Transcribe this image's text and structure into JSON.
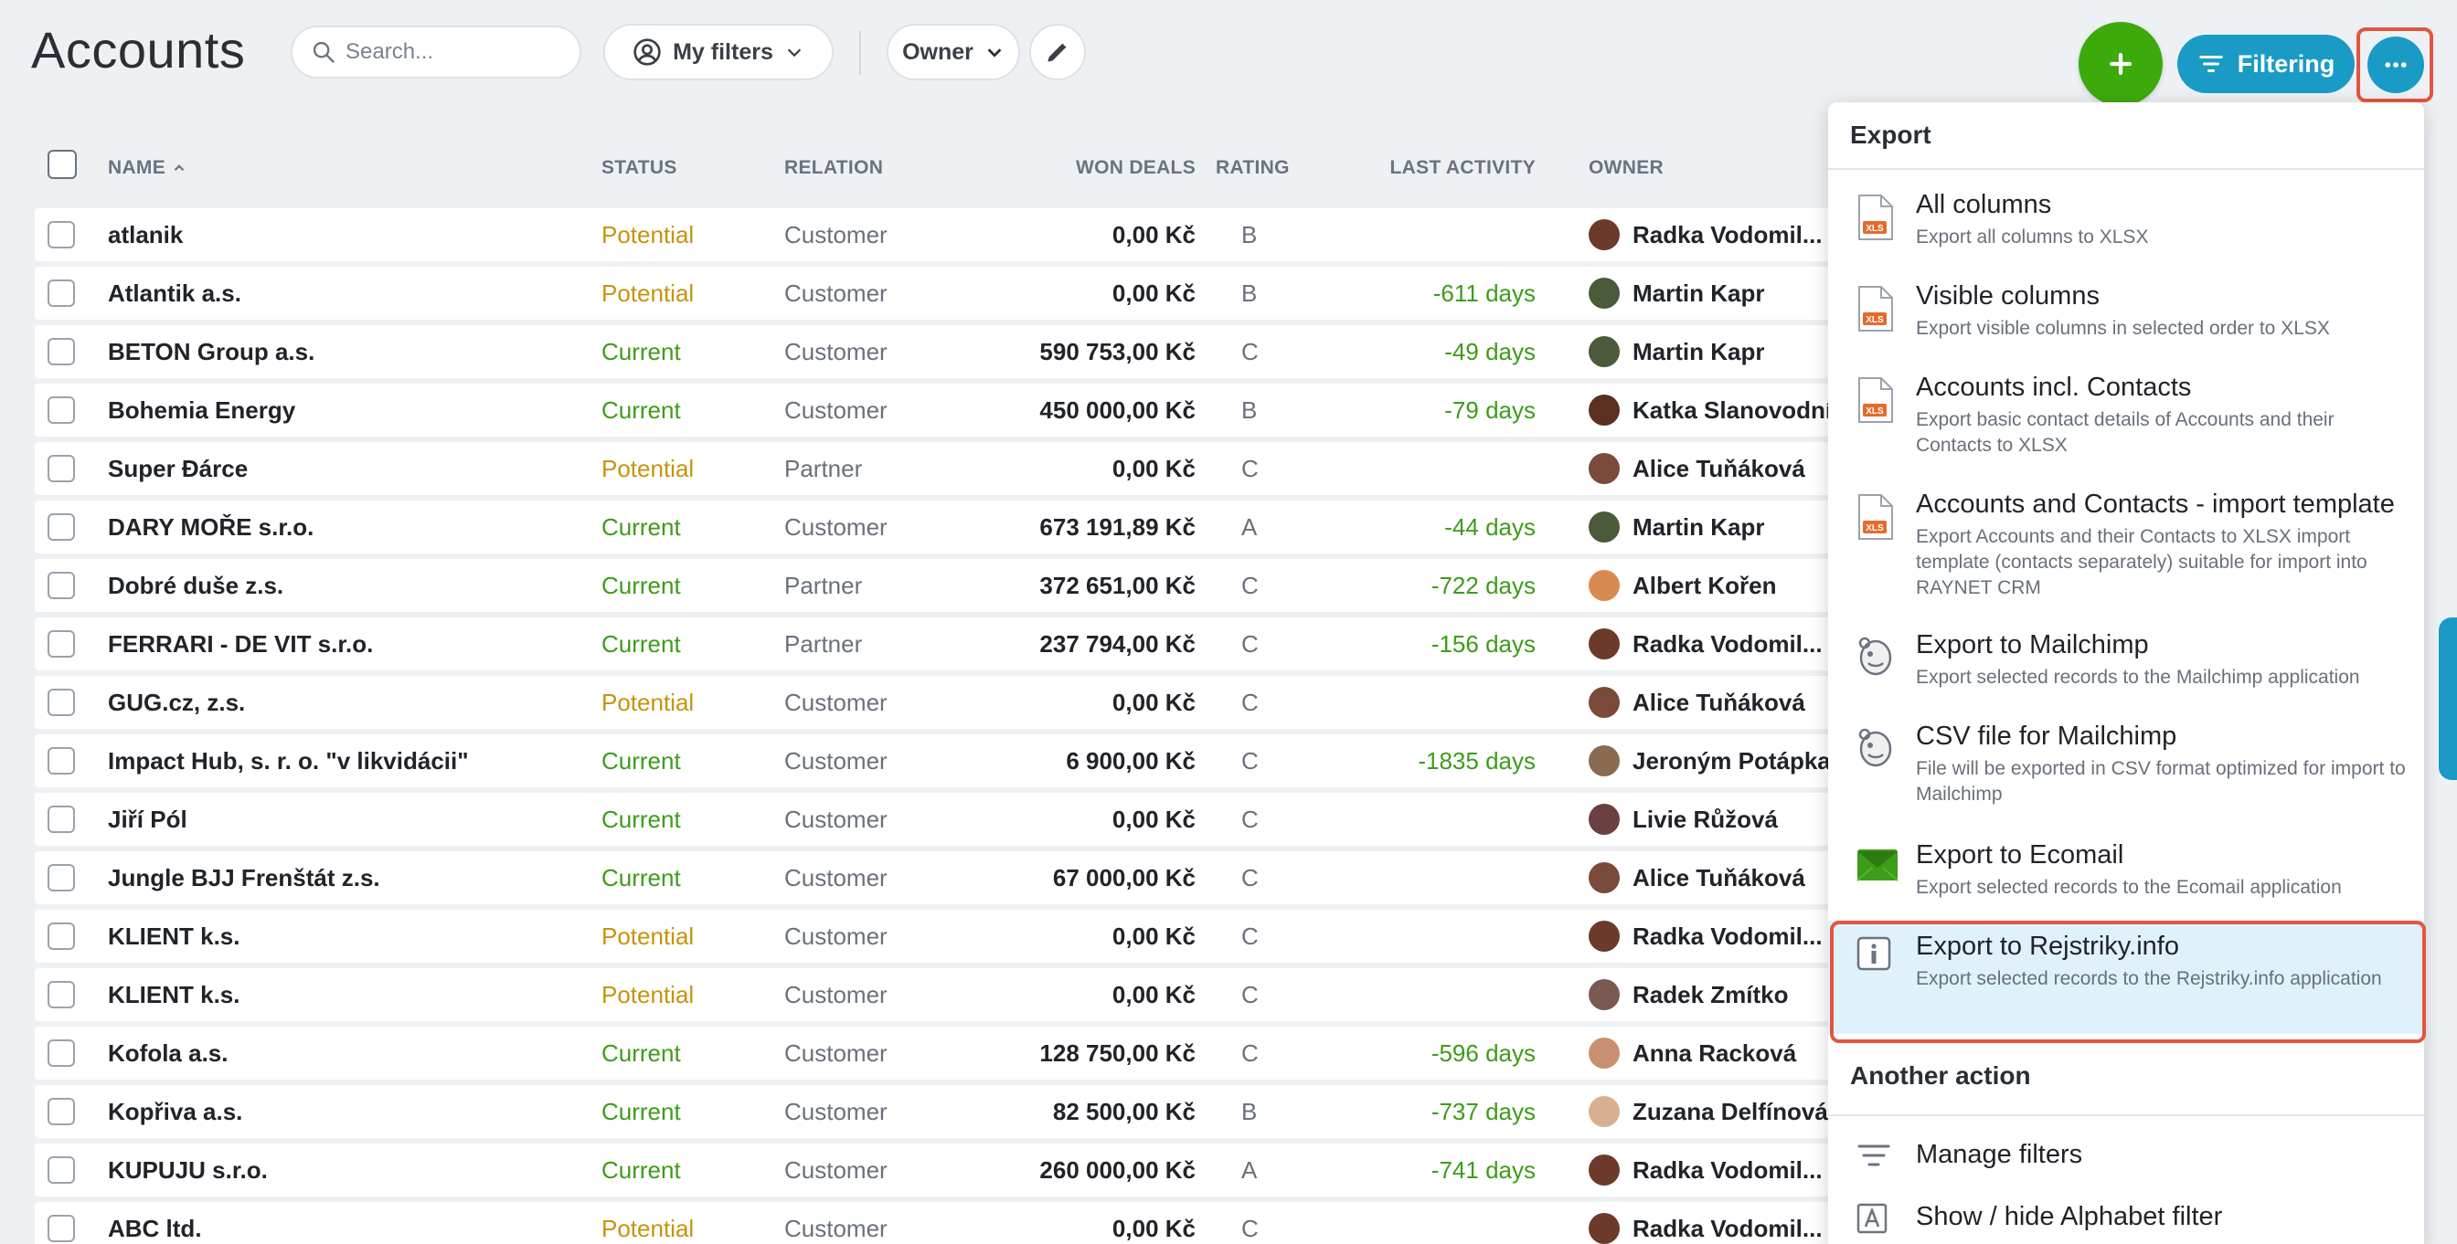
{
  "header": {
    "title": "Accounts",
    "search_placeholder": "Search...",
    "my_filters_label": "My filters",
    "owner_label": "Owner",
    "filtering_label": "Filtering"
  },
  "columns": {
    "name": "NAME",
    "status": "STATUS",
    "relation": "RELATION",
    "won_deals": "WON DEALS",
    "rating": "RATING",
    "last_activity": "LAST ACTIVITY",
    "owner": "OWNER"
  },
  "colors": {
    "primary": "#1a9bc6",
    "add": "#3daa0c",
    "potential": "#c8930b",
    "current": "#3d9c19",
    "highlight_border": "#e4553f",
    "selected_bg": "#dff1fb"
  },
  "rows": [
    {
      "name": "atlanik",
      "status": "Potential",
      "relation": "Customer",
      "won_deals": "0,00 Kč",
      "rating": "B",
      "last_activity": "",
      "owner": "Radka Vodomil...",
      "avatar_color": "#6b3a2a"
    },
    {
      "name": "Atlantik a.s.",
      "status": "Potential",
      "relation": "Customer",
      "won_deals": "0,00 Kč",
      "rating": "B",
      "last_activity": "-611 days",
      "owner": "Martin Kapr",
      "avatar_color": "#4a5a3a"
    },
    {
      "name": "BETON Group a.s.",
      "status": "Current",
      "relation": "Customer",
      "won_deals": "590 753,00 Kč",
      "rating": "C",
      "last_activity": "-49 days",
      "owner": "Martin Kapr",
      "avatar_color": "#4a5a3a"
    },
    {
      "name": "Bohemia Energy",
      "status": "Current",
      "relation": "Customer",
      "won_deals": "450 000,00 Kč",
      "rating": "B",
      "last_activity": "-79 days",
      "owner": "Katka Slanovodní",
      "avatar_color": "#5a3020"
    },
    {
      "name": "Super Ðárce",
      "status": "Potential",
      "relation": "Partner",
      "won_deals": "0,00 Kč",
      "rating": "C",
      "last_activity": "",
      "owner": "Alice Tuňáková",
      "avatar_color": "#7a4a3a"
    },
    {
      "name": "DARY MOŘE s.r.o.",
      "status": "Current",
      "relation": "Customer",
      "won_deals": "673 191,89 Kč",
      "rating": "A",
      "last_activity": "-44 days",
      "owner": "Martin Kapr",
      "avatar_color": "#4a5a3a"
    },
    {
      "name": "Dobré duše z.s.",
      "status": "Current",
      "relation": "Partner",
      "won_deals": "372 651,00 Kč",
      "rating": "C",
      "last_activity": "-722 days",
      "owner": "Albert Kořen",
      "avatar_color": "#d98a50"
    },
    {
      "name": "FERRARI - DE VIT s.r.o.",
      "status": "Current",
      "relation": "Partner",
      "won_deals": "237 794,00 Kč",
      "rating": "C",
      "last_activity": "-156 days",
      "owner": "Radka Vodomil...",
      "avatar_color": "#6b3a2a"
    },
    {
      "name": "GUG.cz, z.s.",
      "status": "Potential",
      "relation": "Customer",
      "won_deals": "0,00 Kč",
      "rating": "C",
      "last_activity": "",
      "owner": "Alice Tuňáková",
      "avatar_color": "#7a4a3a"
    },
    {
      "name": "Impact Hub, s. r. o. \"v likvidácii\"",
      "status": "Current",
      "relation": "Customer",
      "won_deals": "6 900,00 Kč",
      "rating": "C",
      "last_activity": "-1835 days",
      "owner": "Jeroným Potápka",
      "avatar_color": "#8a6a50"
    },
    {
      "name": "Jiří Pól",
      "status": "Current",
      "relation": "Customer",
      "won_deals": "0,00 Kč",
      "rating": "C",
      "last_activity": "",
      "owner": "Livie Růžová",
      "avatar_color": "#6a4040"
    },
    {
      "name": "Jungle BJJ Frenštát z.s.",
      "status": "Current",
      "relation": "Customer",
      "won_deals": "67 000,00 Kč",
      "rating": "C",
      "last_activity": "",
      "owner": "Alice Tuňáková",
      "avatar_color": "#7a4a3a"
    },
    {
      "name": "KLIENT k.s.",
      "status": "Potential",
      "relation": "Customer",
      "won_deals": "0,00 Kč",
      "rating": "C",
      "last_activity": "",
      "owner": "Radka Vodomil...",
      "avatar_color": "#6b3a2a"
    },
    {
      "name": "KLIENT k.s.",
      "status": "Potential",
      "relation": "Customer",
      "won_deals": "0,00 Kč",
      "rating": "C",
      "last_activity": "",
      "owner": "Radek Zmítko",
      "avatar_color": "#7a5a50"
    },
    {
      "name": "Kofola a.s.",
      "status": "Current",
      "relation": "Customer",
      "won_deals": "128 750,00 Kč",
      "rating": "C",
      "last_activity": "-596 days",
      "owner": "Anna Racková",
      "avatar_color": "#c89070"
    },
    {
      "name": "Kopřiva a.s.",
      "status": "Current",
      "relation": "Customer",
      "won_deals": "82 500,00 Kč",
      "rating": "B",
      "last_activity": "-737 days",
      "owner": "Zuzana Delfínová",
      "avatar_color": "#d8b090"
    },
    {
      "name": "KUPUJU s.r.o.",
      "status": "Current",
      "relation": "Customer",
      "won_deals": "260 000,00 Kč",
      "rating": "A",
      "last_activity": "-741 days",
      "owner": "Radka Vodomil...",
      "avatar_color": "#6b3a2a"
    },
    {
      "name": "ABC ltd.",
      "status": "Potential",
      "relation": "Customer",
      "won_deals": "0,00 Kč",
      "rating": "C",
      "last_activity": "",
      "owner": "Radka Vodomil...",
      "avatar_color": "#6b3a2a"
    }
  ],
  "menu": {
    "export_title": "Export",
    "items": [
      {
        "title": "All columns",
        "desc": "Export all columns to XLSX",
        "icon": "xls-icon"
      },
      {
        "title": "Visible columns",
        "desc": "Export visible columns in selected order to XLSX",
        "icon": "xls-icon"
      },
      {
        "title": "Accounts incl. Contacts",
        "desc": "Export basic contact details of Accounts and their Contacts to XLSX",
        "icon": "xls-icon"
      },
      {
        "title": "Accounts and Contacts - import template",
        "desc": "Export Accounts and their Contacts to XLSX import template (contacts separately) suitable for import into RAYNET CRM",
        "icon": "xls-icon"
      },
      {
        "title": "Export to Mailchimp",
        "desc": "Export selected records to the Mailchimp application",
        "icon": "mailchimp-icon"
      },
      {
        "title": "CSV file for Mailchimp",
        "desc": "File will be exported in CSV format optimized for import to Mailchimp",
        "icon": "mailchimp-icon"
      },
      {
        "title": "Export to Ecomail",
        "desc": "Export selected records to the Ecomail application",
        "icon": "ecomail-icon"
      },
      {
        "title": "Export to Rejstriky.info",
        "desc": "Export selected records to the Rejstriky.info application",
        "icon": "rejstriky-icon"
      }
    ],
    "another_title": "Another action",
    "actions": [
      {
        "title": "Manage filters",
        "icon": "filter-lines-icon"
      },
      {
        "title": "Show / hide Alphabet filter",
        "icon": "alphabet-icon"
      }
    ]
  }
}
